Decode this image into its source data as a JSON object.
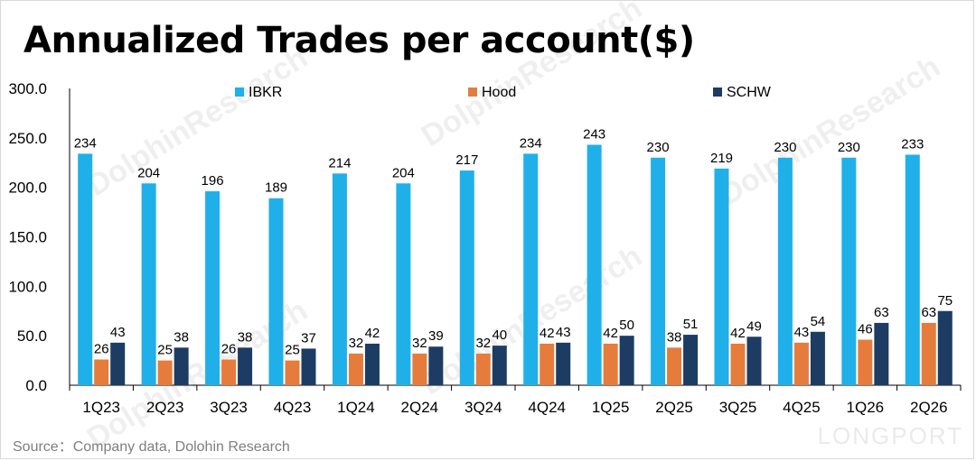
{
  "title": "Annualized Trades per account($)",
  "source": "Source：Company data,  Dolohin Research",
  "watermark": {
    "text": "DolphinResearch",
    "logo": "LONGPORT"
  },
  "chart_data": {
    "type": "bar",
    "title": "Annualized Trades per account($)",
    "xlabel": "",
    "ylabel": "",
    "ylim": [
      0,
      300
    ],
    "yticks": [
      "0.0",
      "50.0",
      "100.0",
      "150.0",
      "200.0",
      "250.0",
      "300.0"
    ],
    "grid": false,
    "legend_position": "top",
    "categories": [
      "1Q23",
      "2Q23",
      "3Q23",
      "4Q23",
      "1Q24",
      "2Q24",
      "3Q24",
      "4Q24",
      "1Q25",
      "2Q25",
      "3Q25",
      "4Q25",
      "1Q26",
      "2Q26"
    ],
    "series": [
      {
        "name": "IBKR",
        "color": "#1fb0ea",
        "values": [
          234,
          204,
          196,
          189,
          214,
          204,
          217,
          234,
          243,
          230,
          219,
          230,
          230,
          233
        ]
      },
      {
        "name": "Hood",
        "color": "#e67c3b",
        "values": [
          26,
          25,
          26,
          25,
          32,
          32,
          32,
          42,
          42,
          38,
          42,
          43,
          46,
          63
        ]
      },
      {
        "name": "SCHW",
        "color": "#1c3c63",
        "values": [
          43,
          38,
          38,
          37,
          42,
          39,
          40,
          43,
          50,
          51,
          49,
          54,
          63,
          75
        ]
      }
    ]
  }
}
